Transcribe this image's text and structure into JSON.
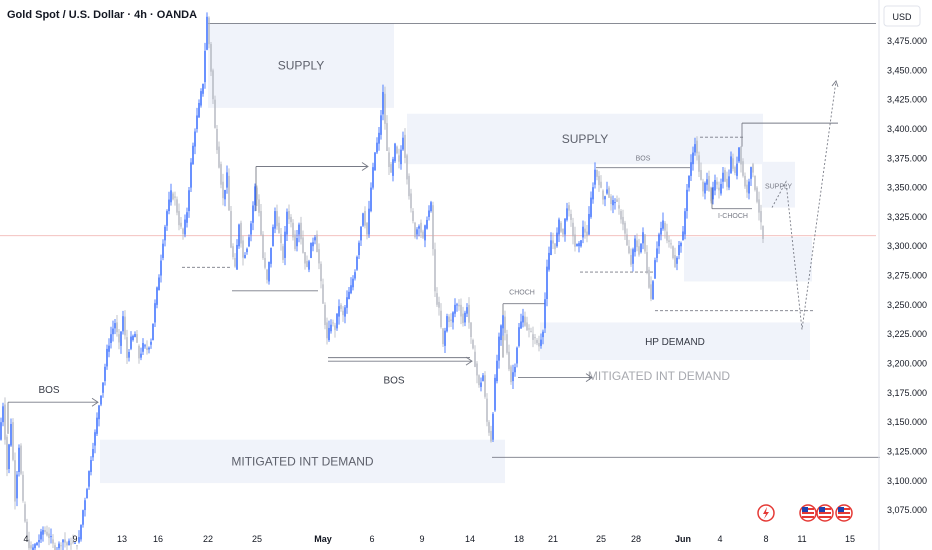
{
  "header": {
    "title": "Gold Spot / U.S. Dollar · 4h · OANDA",
    "currency": "USD"
  },
  "colors": {
    "up": "#2962ff",
    "down": "#b2b5be",
    "zone": "#f0f3fa",
    "line": "#787b86",
    "event": "#e53935"
  },
  "chart_data": {
    "type": "candlestick",
    "y_axis": {
      "min": 3058,
      "max": 3510,
      "ticks": [
        3075,
        3100,
        3125,
        3150,
        3175,
        3200,
        3225,
        3250,
        3275,
        3300,
        3325,
        3350,
        3375,
        3400,
        3425,
        3450,
        3475
      ],
      "tick_labels": [
        "3,075.000",
        "3,100.000",
        "3,125.000",
        "3,150.000",
        "3,175.000",
        "3,200.000",
        "3,225.000",
        "3,250.000",
        "3,275.000",
        "3,300.000",
        "3,325.000",
        "3,350.000",
        "3,375.000",
        "3,400.000",
        "3,425.000",
        "3,450.000",
        "3,475.000"
      ]
    },
    "x_axis": {
      "tick_labels": [
        "4",
        "9",
        "13",
        "16",
        "22",
        "25",
        "May",
        "6",
        "9",
        "14",
        "18",
        "21",
        "25",
        "28",
        "Jun",
        "4",
        "8",
        "11",
        "15"
      ],
      "bold": [
        "May",
        "Jun"
      ]
    },
    "current_price": 3309,
    "path": [
      [
        0,
        3135
      ],
      [
        4,
        3165
      ],
      [
        8,
        3110
      ],
      [
        12,
        3150
      ],
      [
        16,
        3085
      ],
      [
        20,
        3130
      ],
      [
        24,
        3080
      ],
      [
        28,
        3050
      ],
      [
        32,
        3040
      ],
      [
        36,
        3045
      ],
      [
        40,
        3050
      ],
      [
        44,
        3058
      ],
      [
        48,
        3055
      ],
      [
        52,
        3050
      ],
      [
        56,
        3040
      ],
      [
        60,
        3045
      ],
      [
        64,
        3050
      ],
      [
        68,
        3045
      ],
      [
        72,
        3048
      ],
      [
        76,
        3045
      ],
      [
        80,
        3050
      ],
      [
        84,
        3075
      ],
      [
        88,
        3095
      ],
      [
        92,
        3120
      ],
      [
        96,
        3140
      ],
      [
        100,
        3165
      ],
      [
        104,
        3185
      ],
      [
        108,
        3210
      ],
      [
        112,
        3225
      ],
      [
        116,
        3235
      ],
      [
        120,
        3215
      ],
      [
        124,
        3240
      ],
      [
        128,
        3205
      ],
      [
        132,
        3220
      ],
      [
        136,
        3225
      ],
      [
        140,
        3205
      ],
      [
        144,
        3215
      ],
      [
        148,
        3212
      ],
      [
        152,
        3220
      ],
      [
        156,
        3250
      ],
      [
        160,
        3275
      ],
      [
        164,
        3305
      ],
      [
        168,
        3330
      ],
      [
        172,
        3345
      ],
      [
        176,
        3340
      ],
      [
        180,
        3320
      ],
      [
        184,
        3310
      ],
      [
        188,
        3330
      ],
      [
        192,
        3370
      ],
      [
        196,
        3400
      ],
      [
        200,
        3420
      ],
      [
        204,
        3440
      ],
      [
        208,
        3495
      ],
      [
        212,
        3450
      ],
      [
        216,
        3400
      ],
      [
        220,
        3370
      ],
      [
        224,
        3340
      ],
      [
        228,
        3360
      ],
      [
        232,
        3300
      ],
      [
        236,
        3280
      ],
      [
        240,
        3320
      ],
      [
        244,
        3290
      ],
      [
        248,
        3300
      ],
      [
        252,
        3320
      ],
      [
        256,
        3350
      ],
      [
        260,
        3330
      ],
      [
        264,
        3290
      ],
      [
        268,
        3270
      ],
      [
        272,
        3300
      ],
      [
        276,
        3330
      ],
      [
        280,
        3310
      ],
      [
        284,
        3290
      ],
      [
        288,
        3330
      ],
      [
        292,
        3320
      ],
      [
        296,
        3300
      ],
      [
        300,
        3320
      ],
      [
        304,
        3295
      ],
      [
        308,
        3280
      ],
      [
        312,
        3300
      ],
      [
        316,
        3310
      ],
      [
        320,
        3285
      ],
      [
        324,
        3250
      ],
      [
        328,
        3220
      ],
      [
        332,
        3235
      ],
      [
        336,
        3230
      ],
      [
        340,
        3250
      ],
      [
        344,
        3240
      ],
      [
        348,
        3255
      ],
      [
        352,
        3265
      ],
      [
        356,
        3280
      ],
      [
        360,
        3305
      ],
      [
        364,
        3330
      ],
      [
        368,
        3310
      ],
      [
        372,
        3350
      ],
      [
        376,
        3380
      ],
      [
        380,
        3395
      ],
      [
        384,
        3430
      ],
      [
        388,
        3380
      ],
      [
        392,
        3360
      ],
      [
        396,
        3385
      ],
      [
        400,
        3370
      ],
      [
        404,
        3395
      ],
      [
        408,
        3360
      ],
      [
        412,
        3330
      ],
      [
        416,
        3310
      ],
      [
        420,
        3320
      ],
      [
        424,
        3305
      ],
      [
        428,
        3325
      ],
      [
        432,
        3335
      ],
      [
        436,
        3260
      ],
      [
        440,
        3245
      ],
      [
        444,
        3215
      ],
      [
        448,
        3240
      ],
      [
        452,
        3235
      ],
      [
        456,
        3250
      ],
      [
        460,
        3250
      ],
      [
        464,
        3235
      ],
      [
        468,
        3250
      ],
      [
        472,
        3220
      ],
      [
        476,
        3200
      ],
      [
        480,
        3180
      ],
      [
        484,
        3190
      ],
      [
        488,
        3150
      ],
      [
        492,
        3135
      ],
      [
        496,
        3185
      ],
      [
        500,
        3220
      ],
      [
        504,
        3240
      ],
      [
        508,
        3210
      ],
      [
        512,
        3185
      ],
      [
        516,
        3200
      ],
      [
        520,
        3230
      ],
      [
        524,
        3240
      ],
      [
        528,
        3230
      ],
      [
        532,
        3225
      ],
      [
        536,
        3220
      ],
      [
        540,
        3215
      ],
      [
        544,
        3230
      ],
      [
        548,
        3280
      ],
      [
        552,
        3305
      ],
      [
        556,
        3300
      ],
      [
        560,
        3320
      ],
      [
        564,
        3310
      ],
      [
        568,
        3335
      ],
      [
        572,
        3320
      ],
      [
        576,
        3300
      ],
      [
        580,
        3300
      ],
      [
        584,
        3315
      ],
      [
        588,
        3310
      ],
      [
        592,
        3340
      ],
      [
        596,
        3365
      ],
      [
        600,
        3355
      ],
      [
        604,
        3340
      ],
      [
        608,
        3350
      ],
      [
        612,
        3335
      ],
      [
        616,
        3340
      ],
      [
        620,
        3330
      ],
      [
        624,
        3320
      ],
      [
        628,
        3300
      ],
      [
        632,
        3285
      ],
      [
        636,
        3305
      ],
      [
        640,
        3295
      ],
      [
        644,
        3310
      ],
      [
        648,
        3280
      ],
      [
        652,
        3255
      ],
      [
        656,
        3290
      ],
      [
        660,
        3310
      ],
      [
        664,
        3320
      ],
      [
        668,
        3305
      ],
      [
        672,
        3300
      ],
      [
        676,
        3285
      ],
      [
        680,
        3300
      ],
      [
        684,
        3310
      ],
      [
        688,
        3350
      ],
      [
        692,
        3370
      ],
      [
        696,
        3390
      ],
      [
        700,
        3365
      ],
      [
        704,
        3345
      ],
      [
        708,
        3360
      ],
      [
        712,
        3340
      ],
      [
        716,
        3355
      ],
      [
        720,
        3345
      ],
      [
        724,
        3365
      ],
      [
        728,
        3350
      ],
      [
        732,
        3375
      ],
      [
        736,
        3360
      ],
      [
        740,
        3385
      ],
      [
        744,
        3360
      ],
      [
        748,
        3345
      ],
      [
        752,
        3370
      ],
      [
        756,
        3350
      ],
      [
        760,
        3330
      ],
      [
        764,
        3305
      ]
    ],
    "zones": [
      {
        "name": "supply-zone-1",
        "label": "SUPPLY",
        "x0": 208,
        "x1": 394,
        "y_top": 3490,
        "y_bottom": 3418
      },
      {
        "name": "supply-zone-2",
        "label": "SUPPLY",
        "x0": 407,
        "x1": 763,
        "y_top": 3413,
        "y_bottom": 3370
      },
      {
        "name": "supply-zone-small",
        "label": "SUPPLY",
        "x0": 762,
        "x1": 795,
        "y_top": 3372,
        "y_bottom": 3333
      },
      {
        "name": "demand-zone-right",
        "label": "",
        "x0": 684,
        "x1": 812,
        "y_top": 3308,
        "y_bottom": 3270
      },
      {
        "name": "hp-demand-zone",
        "label": "HP DEMAND",
        "x0": 540,
        "x1": 810,
        "y_top": 3235,
        "y_bottom": 3203
      },
      {
        "name": "mitigated-demand-zone",
        "label": "MITIGATED INT DEMAND",
        "x0": 100,
        "x1": 505,
        "y_top": 3135,
        "y_bottom": 3098
      }
    ],
    "lines": [
      {
        "name": "high-line",
        "x0": 208,
        "x1": 876,
        "y": 3490,
        "dash": false
      },
      {
        "name": "level-3405-line",
        "x0": 742,
        "x1": 838,
        "y": 3405,
        "dash": false
      },
      {
        "name": "low-line",
        "x0": 492,
        "x1": 880,
        "y": 3120,
        "dash": false
      },
      {
        "name": "dashed-level-3282",
        "x0": 182,
        "x1": 232,
        "y": 3282,
        "dash": true
      },
      {
        "name": "level-3262",
        "x0": 232,
        "x1": 318,
        "y": 3262,
        "dash": false
      },
      {
        "name": "level-3205",
        "x0": 328,
        "x1": 470,
        "y": 3205,
        "dash": false
      },
      {
        "name": "choch-level",
        "x0": 503,
        "x1": 545,
        "y": 3251,
        "dash": false
      },
      {
        "name": "bos-level-right",
        "x0": 596,
        "x1": 690,
        "y": 3367,
        "dash": false
      },
      {
        "name": "dashed-level-3278",
        "x0": 580,
        "x1": 655,
        "y": 3278,
        "dash": true
      },
      {
        "name": "dashed-level-3266",
        "x0": 655,
        "x1": 815,
        "y": 3245,
        "dash": true
      },
      {
        "name": "dashed-level-3393",
        "x0": 700,
        "x1": 745,
        "y": 3393,
        "dash": true
      },
      {
        "name": "ichoch-level",
        "x0": 712,
        "x1": 752,
        "y": 3332,
        "dash": false
      }
    ],
    "arrows": [
      {
        "name": "bos-arrow-left",
        "x0": 8,
        "x1": 98,
        "y": 3167
      },
      {
        "name": "bos-arrow-mid-top",
        "x0": 256,
        "x1": 368,
        "y": 3368
      },
      {
        "name": "bos-arrow-bottom",
        "x0": 328,
        "x1": 472,
        "y": 3202
      },
      {
        "name": "mitigated-arrow",
        "x0": 518,
        "x1": 592,
        "y": 3188
      }
    ],
    "annotations": [
      {
        "name": "bos-label-left",
        "text": "BOS",
        "x": 49,
        "y": 3175,
        "size": "ann"
      },
      {
        "name": "bos-label-mid",
        "text": "BOS",
        "x": 394,
        "y": 3183,
        "size": "ann"
      },
      {
        "name": "choch-label",
        "text": "CHOCH",
        "x": 522,
        "y": 3259,
        "size": "ann-small"
      },
      {
        "name": "bos-label-right",
        "text": "BOS",
        "x": 643,
        "y": 3373,
        "size": "ann-small"
      },
      {
        "name": "ichoch-label",
        "text": "I-CHOCH",
        "x": 733,
        "y": 3324,
        "size": "ann-small"
      },
      {
        "name": "mitigated-int-demand-label",
        "text": "MITIGATED INT DEMAND",
        "x": 659,
        "y": 3186,
        "size": "zone-label-big-faded"
      }
    ],
    "projection": [
      [
        772,
        3333
      ],
      [
        786,
        3355
      ],
      [
        802,
        3229
      ],
      [
        836,
        3441
      ]
    ]
  }
}
